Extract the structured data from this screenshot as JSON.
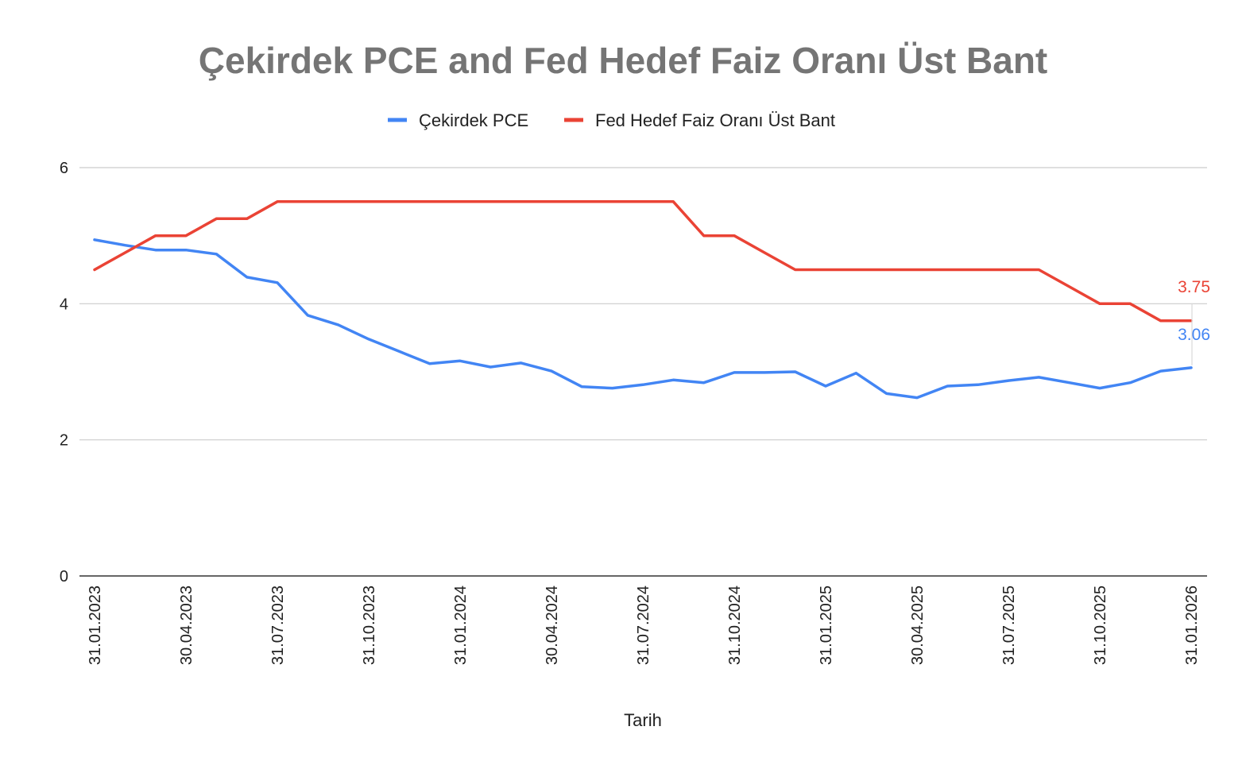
{
  "chart_data": {
    "type": "line",
    "title": "Çekirdek PCE and Fed Hedef Faiz Oranı Üst Bant",
    "xlabel": "Tarih",
    "ylabel": "",
    "ylim": [
      0,
      6
    ],
    "yticks": [
      "0",
      "2",
      "4",
      "6"
    ],
    "grid": true,
    "legend_position": "top",
    "x_tick_labels": [
      "31.01.2023",
      "30.04.2023",
      "31.07.2023",
      "31.10.2023",
      "31.01.2024",
      "30.04.2024",
      "31.07.2024",
      "31.10.2024",
      "31.01.2025",
      "30.04.2025",
      "31.07.2025",
      "31.10.2025",
      "31.01.2026"
    ],
    "categories": [
      "31.01.2023",
      "28.02.2023",
      "31.03.2023",
      "30.04.2023",
      "31.05.2023",
      "30.06.2023",
      "31.07.2023",
      "31.08.2023",
      "30.09.2023",
      "31.10.2023",
      "30.11.2023",
      "31.12.2023",
      "31.01.2024",
      "29.02.2024",
      "31.03.2024",
      "30.04.2024",
      "31.05.2024",
      "30.06.2024",
      "31.07.2024",
      "31.08.2024",
      "30.09.2024",
      "31.10.2024",
      "30.11.2024",
      "31.12.2024",
      "31.01.2025",
      "28.02.2025",
      "31.03.2025",
      "30.04.2025",
      "31.05.2025",
      "30.06.2025",
      "31.07.2025",
      "31.08.2025",
      "30.09.2025",
      "31.10.2025",
      "30.11.2025",
      "31.12.2025",
      "31.01.2026"
    ],
    "series": [
      {
        "name": "Çekirdek PCE",
        "color": "#4285f4",
        "values": [
          4.94,
          4.86,
          4.79,
          4.79,
          4.73,
          4.39,
          4.31,
          3.83,
          3.69,
          3.48,
          3.3,
          3.12,
          3.16,
          3.07,
          3.13,
          3.01,
          2.78,
          2.76,
          2.81,
          2.88,
          2.84,
          2.99,
          2.99,
          3.0,
          2.79,
          2.98,
          2.68,
          2.62,
          2.79,
          2.81,
          2.87,
          2.92,
          2.84,
          2.76,
          2.84,
          3.01,
          3.06
        ],
        "end_label": "3.06"
      },
      {
        "name": "Fed Hedef Faiz Oranı Üst Bant",
        "color": "#ea4335",
        "values": [
          4.5,
          4.75,
          5.0,
          5.0,
          5.25,
          5.25,
          5.5,
          5.5,
          5.5,
          5.5,
          5.5,
          5.5,
          5.5,
          5.5,
          5.5,
          5.5,
          5.5,
          5.5,
          5.5,
          5.5,
          5.0,
          5.0,
          4.75,
          4.5,
          4.5,
          4.5,
          4.5,
          4.5,
          4.5,
          4.5,
          4.5,
          4.5,
          4.25,
          4.0,
          4.0,
          3.75,
          3.75
        ],
        "end_label": "3.75"
      }
    ]
  }
}
